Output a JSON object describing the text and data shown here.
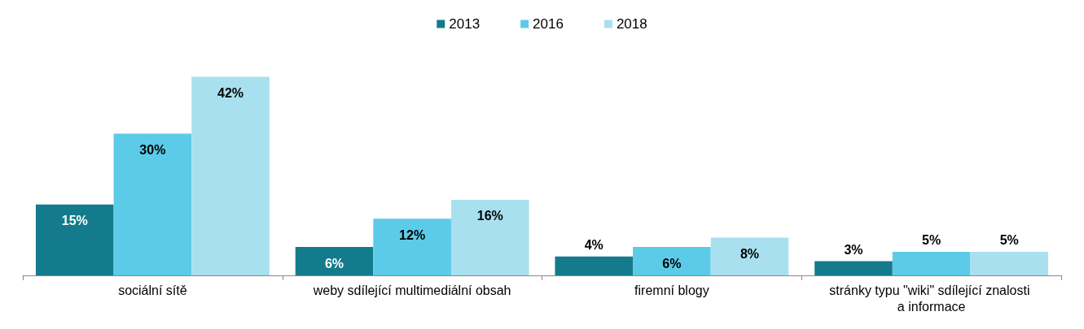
{
  "chart_data": {
    "type": "bar",
    "categories": [
      "sociální sítě",
      "weby sdílející multimediální obsah",
      "firemní blogy",
      "stránky typu \"wiki\" sdílející znalosti a informace"
    ],
    "series": [
      {
        "name": "2013",
        "color": "#137b8b",
        "values": [
          15,
          6,
          4,
          3
        ],
        "value_labels": [
          "15%",
          "6%",
          "4%",
          "3%"
        ]
      },
      {
        "name": "2016",
        "color": "#5ccbe8",
        "values": [
          30,
          12,
          6,
          5
        ],
        "value_labels": [
          "30%",
          "12%",
          "6%",
          "5%"
        ]
      },
      {
        "name": "2018",
        "color": "#a9e0ef",
        "values": [
          42,
          16,
          8,
          5
        ],
        "value_labels": [
          "42%",
          "16%",
          "8%",
          "5%"
        ]
      }
    ],
    "legend": "top",
    "grid": false
  }
}
